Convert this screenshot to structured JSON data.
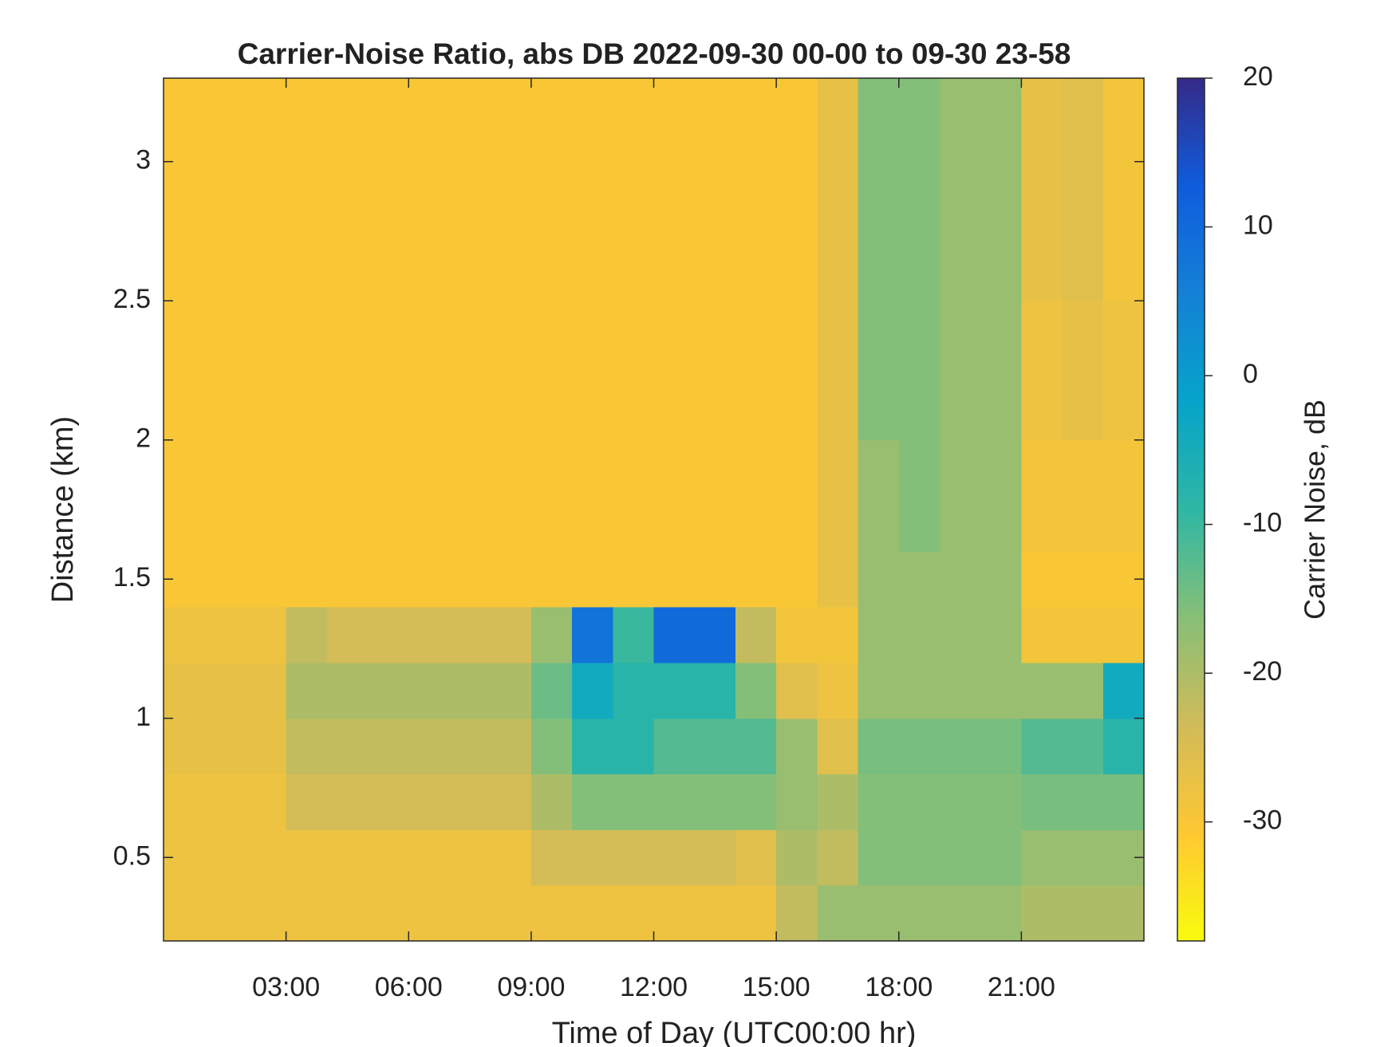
{
  "chart_data": {
    "type": "heatmap",
    "title": "Carrier-Noise Ratio, abs DB 2022-09-30 00-00 to 09-30 23-58",
    "xlabel": "Time of Day (UTC00:00 hr)",
    "ylabel": "Distance (km)",
    "colorbar_label": "Carrier Noise, dB",
    "xbins": [
      0,
      1,
      2,
      3,
      4,
      5,
      6,
      7,
      8,
      9,
      10,
      11,
      12,
      13,
      14,
      15,
      16,
      17,
      18,
      19,
      20,
      21,
      22,
      23,
      24
    ],
    "ybins": [
      0.2,
      0.4,
      0.6,
      0.8,
      1.0,
      1.2,
      1.4,
      1.6,
      2.0,
      2.5,
      3.3
    ],
    "z": [
      [
        -28,
        -28,
        -28,
        -28,
        -28,
        -28,
        -28,
        -28,
        -28,
        -28,
        -28,
        -28,
        -28,
        -28,
        -28,
        -22,
        -18,
        -18,
        -18,
        -18,
        -18,
        -20,
        -20,
        -20
      ],
      [
        -28,
        -28,
        -28,
        -28,
        -28,
        -28,
        -28,
        -28,
        -28,
        -24,
        -24,
        -24,
        -24,
        -24,
        -26,
        -20,
        -22,
        -16,
        -16,
        -16,
        -16,
        -18,
        -18,
        -18
      ],
      [
        -28,
        -28,
        -28,
        -24,
        -24,
        -24,
        -24,
        -24,
        -24,
        -20,
        -16,
        -16,
        -16,
        -16,
        -16,
        -18,
        -20,
        -16,
        -16,
        -16,
        -16,
        -15,
        -15,
        -15
      ],
      [
        -27,
        -27,
        -27,
        -22,
        -22,
        -22,
        -22,
        -22,
        -22,
        -16,
        -8,
        -8,
        -12,
        -12,
        -12,
        -18,
        -26,
        -15,
        -15,
        -15,
        -15,
        -12,
        -12,
        -8
      ],
      [
        -27,
        -27,
        -27,
        -20,
        -20,
        -20,
        -20,
        -20,
        -20,
        -14,
        -4,
        -8,
        -8,
        -8,
        -16,
        -26,
        -28,
        -18,
        -18,
        -18,
        -18,
        -18,
        -18,
        -4
      ],
      [
        -28,
        -28,
        -28,
        -22,
        -24,
        -24,
        -24,
        -24,
        -24,
        -18,
        8,
        -10,
        10,
        10,
        -22,
        -29,
        -29,
        -18,
        -18,
        -18,
        -18,
        -29,
        -29,
        -29
      ],
      [
        -30,
        -30,
        -30,
        -30,
        -30,
        -30,
        -30,
        -30,
        -30,
        -30,
        -30,
        -30,
        -30,
        -30,
        -30,
        -30,
        -27,
        -18,
        -18,
        -18,
        -18,
        -30,
        -30,
        -30
      ],
      [
        -30,
        -30,
        -30,
        -30,
        -30,
        -30,
        -30,
        -30,
        -30,
        -30,
        -30,
        -30,
        -30,
        -30,
        -30,
        -30,
        -27,
        -18,
        -16,
        -18,
        -18,
        -29,
        -29,
        -29
      ],
      [
        -30,
        -30,
        -30,
        -30,
        -30,
        -30,
        -30,
        -30,
        -30,
        -30,
        -30,
        -30,
        -30,
        -30,
        -30,
        -30,
        -27,
        -16,
        -16,
        -18,
        -18,
        -28,
        -27,
        -28
      ],
      [
        -30,
        -30,
        -30,
        -30,
        -30,
        -30,
        -30,
        -30,
        -30,
        -30,
        -30,
        -30,
        -30,
        -30,
        -30,
        -30,
        -27,
        -16,
        -16,
        -18,
        -18,
        -27,
        -26,
        -29
      ]
    ],
    "xlim": [
      0,
      24
    ],
    "xticks": [
      {
        "value": 3,
        "label": "03:00"
      },
      {
        "value": 6,
        "label": "06:00"
      },
      {
        "value": 9,
        "label": "09:00"
      },
      {
        "value": 12,
        "label": "12:00"
      },
      {
        "value": 15,
        "label": "15:00"
      },
      {
        "value": 18,
        "label": "18:00"
      },
      {
        "value": 21,
        "label": "21:00"
      }
    ],
    "ylim": [
      0.2,
      3.3
    ],
    "yticks": [
      0.5,
      1,
      1.5,
      2,
      2.5,
      3
    ],
    "clim": [
      -38,
      20
    ],
    "cticks": [
      -30,
      -20,
      -10,
      0,
      10,
      20
    ],
    "colormap": [
      "#f9fb0e",
      "#fec832",
      "#d1bb59",
      "#87bf77",
      "#2eb7a4",
      "#06a4ca",
      "#1481d6",
      "#0f5cdd",
      "#352a87"
    ]
  }
}
